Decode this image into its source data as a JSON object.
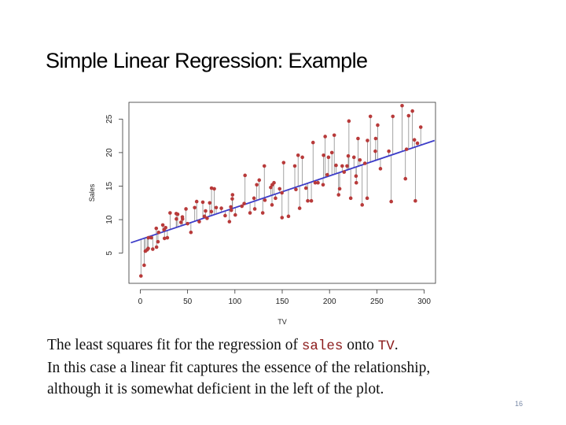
{
  "slide": {
    "title": "Simple Linear Regression: Example",
    "caption": {
      "line1_pre": "The least squares fit for the regression of ",
      "line1_code1": "sales",
      "line1_mid": " onto ",
      "line1_code2": "TV",
      "line1_post": ".",
      "line2": "In this case a linear fit captures the essence of the relationship,",
      "line3": "although it is somewhat deficient in the left of the plot."
    },
    "page_number": "16"
  },
  "colors": {
    "points": "#b83a3a",
    "fit_line": "#3c3cc8",
    "residuals": "#8c8c8c",
    "mono_text": "#8b1a1a"
  },
  "chart_data": {
    "type": "scatter",
    "title": "",
    "xlabel": "TV",
    "ylabel": "Sales",
    "xlim": [
      -12,
      312
    ],
    "ylim": [
      0.5,
      27.5
    ],
    "xticks": [
      0,
      50,
      100,
      150,
      200,
      250,
      300
    ],
    "yticks": [
      5,
      10,
      15,
      20,
      25
    ],
    "grid": false,
    "fit": {
      "intercept": 7.03,
      "slope": 0.0475
    },
    "residual_lines": true,
    "points": [
      [
        0.7,
        1.6
      ],
      [
        4.1,
        3.2
      ],
      [
        5.4,
        5.3
      ],
      [
        7.3,
        5.5
      ],
      [
        8.4,
        5.7
      ],
      [
        8.6,
        7.3
      ],
      [
        11.7,
        7.3
      ],
      [
        13.2,
        5.6
      ],
      [
        16.9,
        8.7
      ],
      [
        17.2,
        5.9
      ],
      [
        18.7,
        6.7
      ],
      [
        19.4,
        8.1
      ],
      [
        23.8,
        9.2
      ],
      [
        25.1,
        8.5
      ],
      [
        25.6,
        7.2
      ],
      [
        26.8,
        8.8
      ],
      [
        28.6,
        7.3
      ],
      [
        31.5,
        11.0
      ],
      [
        38.0,
        10.9
      ],
      [
        38.2,
        10.1
      ],
      [
        39.5,
        10.8
      ],
      [
        43.0,
        9.6
      ],
      [
        44.5,
        10.4
      ],
      [
        44.7,
        10.1
      ],
      [
        48.3,
        11.6
      ],
      [
        50.0,
        9.4
      ],
      [
        53.5,
        8.1
      ],
      [
        57.5,
        11.8
      ],
      [
        59.6,
        12.7
      ],
      [
        62.3,
        9.7
      ],
      [
        66.1,
        12.6
      ],
      [
        67.8,
        10.5
      ],
      [
        69.0,
        11.3
      ],
      [
        70.6,
        10.2
      ],
      [
        73.4,
        12.5
      ],
      [
        75.1,
        11.2
      ],
      [
        75.3,
        14.7
      ],
      [
        78.2,
        14.6
      ],
      [
        80.2,
        11.8
      ],
      [
        85.7,
        11.7
      ],
      [
        89.7,
        10.6
      ],
      [
        94.2,
        9.7
      ],
      [
        95.7,
        11.9
      ],
      [
        96.2,
        11.4
      ],
      [
        97.2,
        13.1
      ],
      [
        97.5,
        13.7
      ],
      [
        100.4,
        10.7
      ],
      [
        107.4,
        12.0
      ],
      [
        109.8,
        12.4
      ],
      [
        110.7,
        16.6
      ],
      [
        116.0,
        11.0
      ],
      [
        120.2,
        13.2
      ],
      [
        121.0,
        11.6
      ],
      [
        123.1,
        15.2
      ],
      [
        125.7,
        15.9
      ],
      [
        129.4,
        11.0
      ],
      [
        131.1,
        18.0
      ],
      [
        131.7,
        12.9
      ],
      [
        137.9,
        14.8
      ],
      [
        139.2,
        12.2
      ],
      [
        139.5,
        15.2
      ],
      [
        141.3,
        15.5
      ],
      [
        142.9,
        13.2
      ],
      [
        147.3,
        14.6
      ],
      [
        149.7,
        14.0
      ],
      [
        149.8,
        10.3
      ],
      [
        151.5,
        18.5
      ],
      [
        156.6,
        10.5
      ],
      [
        163.3,
        18.0
      ],
      [
        164.5,
        14.5
      ],
      [
        166.8,
        19.6
      ],
      [
        168.4,
        11.7
      ],
      [
        171.3,
        19.3
      ],
      [
        175.1,
        14.7
      ],
      [
        177.0,
        12.8
      ],
      [
        180.8,
        12.8
      ],
      [
        182.6,
        21.5
      ],
      [
        184.9,
        15.5
      ],
      [
        187.8,
        15.5
      ],
      [
        193.2,
        15.2
      ],
      [
        193.7,
        19.6
      ],
      [
        195.4,
        22.4
      ],
      [
        197.6,
        16.7
      ],
      [
        198.9,
        19.3
      ],
      [
        202.5,
        20.0
      ],
      [
        205.0,
        22.6
      ],
      [
        206.9,
        18.1
      ],
      [
        209.6,
        13.7
      ],
      [
        210.7,
        14.6
      ],
      [
        213.4,
        18.0
      ],
      [
        215.4,
        17.1
      ],
      [
        218.5,
        18.0
      ],
      [
        219.8,
        19.5
      ],
      [
        220.5,
        24.7
      ],
      [
        222.4,
        13.2
      ],
      [
        225.8,
        19.3
      ],
      [
        228.0,
        16.5
      ],
      [
        228.3,
        15.5
      ],
      [
        230.1,
        22.1
      ],
      [
        232.1,
        18.9
      ],
      [
        234.5,
        12.2
      ],
      [
        237.4,
        18.4
      ],
      [
        239.8,
        13.2
      ],
      [
        240.1,
        21.8
      ],
      [
        243.2,
        25.4
      ],
      [
        248.4,
        20.2
      ],
      [
        248.8,
        22.1
      ],
      [
        250.9,
        24.1
      ],
      [
        253.8,
        17.6
      ],
      [
        262.7,
        20.2
      ],
      [
        265.2,
        12.7
      ],
      [
        266.9,
        25.4
      ],
      [
        276.7,
        27.0
      ],
      [
        280.2,
        16.1
      ],
      [
        281.4,
        20.5
      ],
      [
        283.6,
        25.5
      ],
      [
        287.6,
        26.2
      ],
      [
        289.7,
        21.9
      ],
      [
        290.7,
        12.8
      ],
      [
        292.9,
        21.4
      ],
      [
        296.4,
        23.8
      ]
    ]
  }
}
